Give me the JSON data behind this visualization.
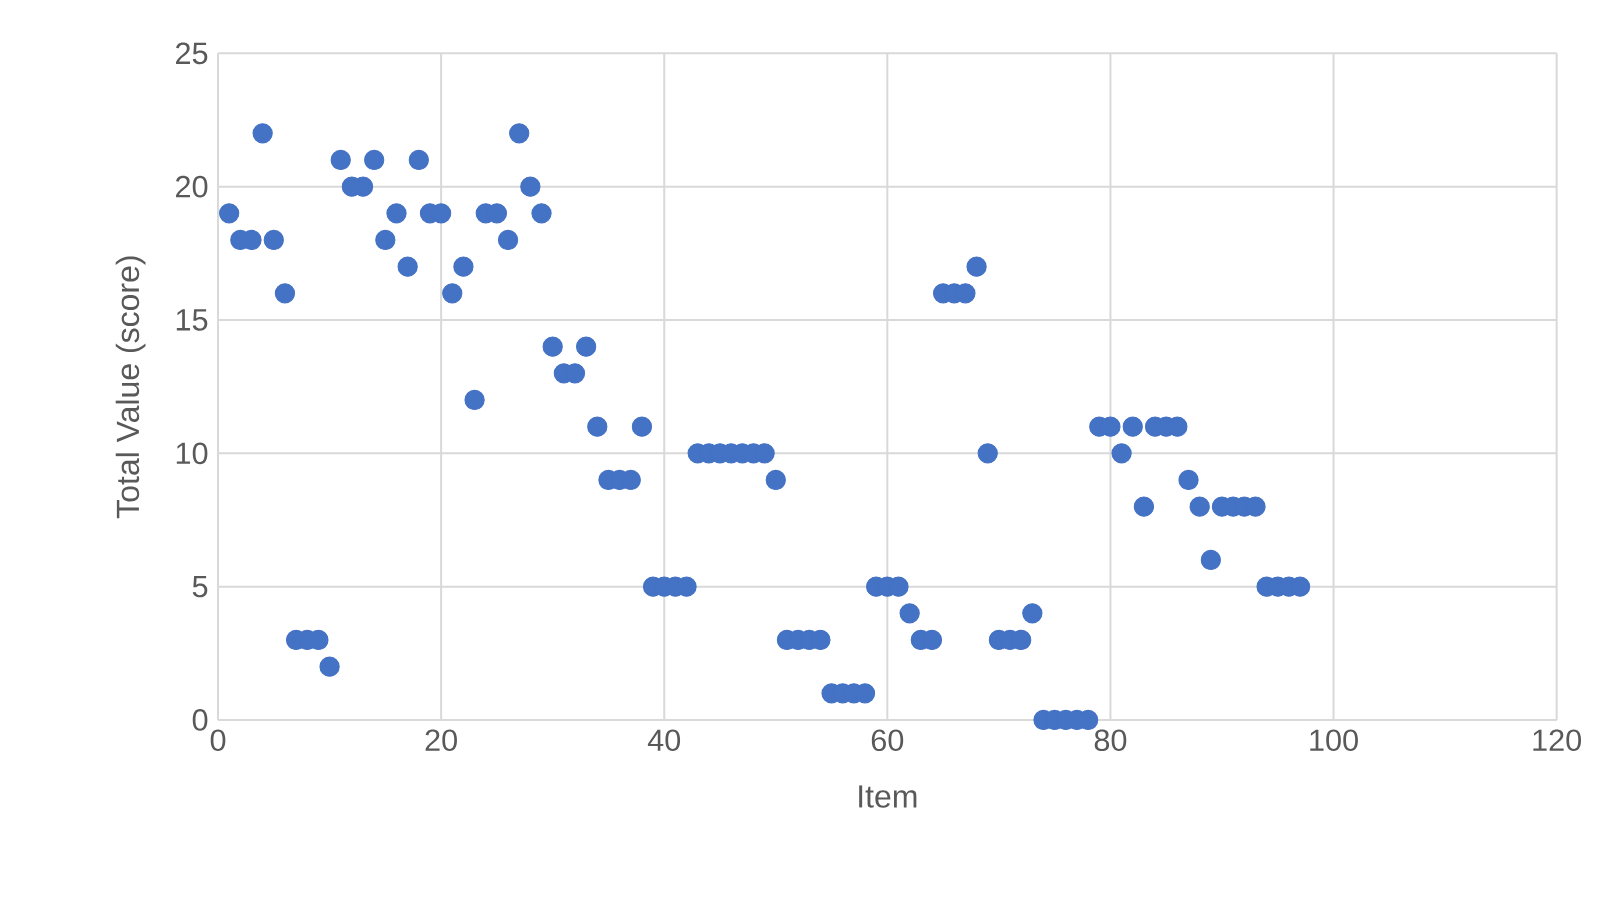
{
  "chart_data": {
    "type": "scatter",
    "xlabel": "Item",
    "ylabel": "Total Value (score)",
    "xlim": [
      0,
      120
    ],
    "ylim": [
      0,
      25
    ],
    "xticks": [
      0,
      20,
      40,
      60,
      80,
      100,
      120
    ],
    "yticks": [
      0,
      5,
      10,
      15,
      20,
      25
    ],
    "grid": true,
    "color": "#4472c4",
    "x": [
      1,
      2,
      3,
      4,
      5,
      6,
      7,
      8,
      9,
      10,
      11,
      12,
      13,
      14,
      15,
      16,
      17,
      18,
      19,
      20,
      21,
      22,
      23,
      24,
      25,
      26,
      27,
      28,
      29,
      30,
      31,
      32,
      33,
      34,
      35,
      36,
      37,
      38,
      39,
      40,
      41,
      42,
      43,
      44,
      45,
      46,
      47,
      48,
      49,
      50,
      51,
      52,
      53,
      54,
      55,
      56,
      57,
      58,
      59,
      60,
      61,
      62,
      63,
      64,
      65,
      66,
      67,
      68,
      69,
      70,
      71,
      72,
      73,
      74,
      75,
      76,
      77,
      78,
      79,
      80,
      81,
      82,
      83,
      84,
      85,
      86,
      87,
      88,
      89,
      90,
      91,
      92,
      93,
      94,
      95,
      96,
      97
    ],
    "values": [
      19,
      18,
      18,
      22,
      18,
      16,
      3,
      3,
      3,
      2,
      21,
      20,
      20,
      21,
      18,
      19,
      17,
      21,
      19,
      19,
      16,
      17,
      12,
      19,
      19,
      18,
      22,
      20,
      19,
      14,
      13,
      13,
      14,
      11,
      9,
      9,
      9,
      11,
      5,
      5,
      5,
      5,
      10,
      10,
      10,
      10,
      10,
      10,
      10,
      9,
      3,
      3,
      3,
      3,
      1,
      1,
      1,
      1,
      5,
      5,
      5,
      4,
      3,
      3,
      16,
      16,
      16,
      17,
      10,
      3,
      3,
      3,
      4,
      0,
      0,
      0,
      0,
      0,
      11,
      11,
      10,
      11,
      8,
      11,
      11,
      11,
      9,
      8,
      6,
      8,
      8,
      8,
      8,
      5,
      5,
      5,
      5
    ]
  }
}
